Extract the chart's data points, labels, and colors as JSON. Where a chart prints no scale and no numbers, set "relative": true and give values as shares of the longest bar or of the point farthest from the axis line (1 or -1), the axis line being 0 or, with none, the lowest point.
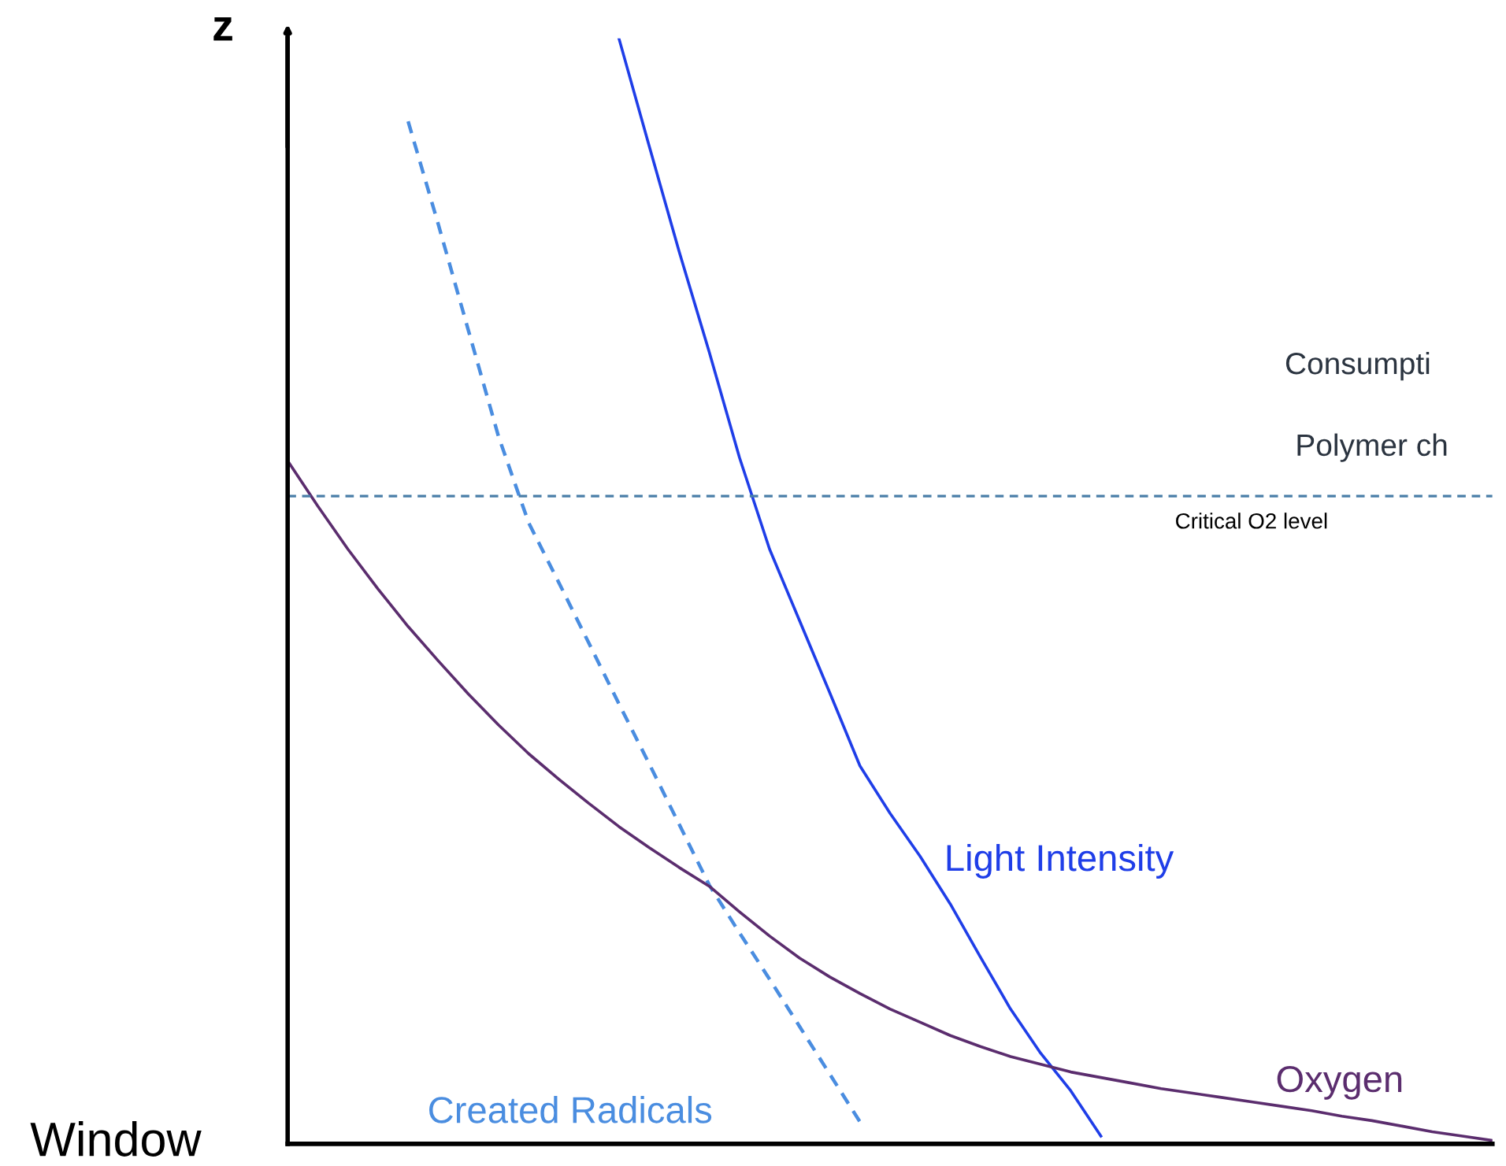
{
  "chart_data": {
    "type": "line",
    "relative": true,
    "ylabel": "z",
    "categories": [
      null,
      null,
      null,
      null,
      null,
      null,
      null,
      null,
      null,
      null,
      null,
      null,
      null,
      null,
      null,
      null,
      null,
      null,
      null,
      null,
      null,
      null,
      null,
      null,
      null,
      null,
      null,
      null,
      null,
      null,
      null,
      null,
      null,
      null,
      null,
      null,
      null,
      null,
      null,
      null,
      null
    ],
    "series": [
      {
        "name": "Created Radicals",
        "color": "#4a8de0",
        "line_style": "dashed",
        "values": [
          null,
          null,
          null,
          null,
          0.925,
          0.832,
          0.736,
          0.64,
          0.562,
          0.508,
          0.453,
          0.398,
          0.344,
          0.289,
          0.234,
          0.191,
          0.149,
          0.106,
          0.063,
          0.02,
          null,
          null,
          null,
          null,
          null,
          null,
          null,
          null,
          null,
          null,
          null,
          null,
          null,
          null,
          null,
          null,
          null,
          null,
          null,
          null,
          null
        ]
      },
      {
        "name": "Light Intensity",
        "color": "#1f3ee8",
        "line_style": "solid",
        "values": [
          null,
          null,
          null,
          null,
          null,
          null,
          null,
          null,
          null,
          null,
          null,
          1.0,
          0.903,
          0.807,
          0.716,
          0.621,
          0.538,
          0.473,
          0.408,
          0.342,
          0.299,
          0.26,
          0.217,
          0.169,
          0.122,
          0.082,
          0.048,
          0.007,
          null,
          null,
          null,
          null,
          null,
          null,
          null,
          null,
          null,
          null,
          null,
          null,
          null
        ]
      },
      {
        "name": "Oxygen",
        "color": "#5b2d6e",
        "line_style": "solid",
        "values": [
          0.618,
          0.577,
          0.538,
          0.502,
          0.468,
          0.437,
          0.407,
          0.379,
          0.353,
          0.33,
          0.308,
          0.287,
          0.268,
          0.25,
          0.233,
          0.21,
          0.188,
          0.168,
          0.151,
          0.136,
          0.122,
          0.11,
          0.098,
          0.088,
          0.079,
          0.072,
          0.065,
          0.06,
          0.055,
          0.05,
          0.046,
          0.042,
          0.038,
          0.034,
          0.03,
          0.025,
          0.021,
          0.016,
          0.011,
          0.007,
          0.003
        ]
      }
    ],
    "ref_lines": [
      {
        "axis": "y",
        "value": 0.586,
        "label": "Critical O2 level",
        "color": "#4a7fa8",
        "line_style": "dashed"
      }
    ],
    "annotations": [
      "Consumpti",
      "Polymer ch",
      "Window"
    ]
  }
}
